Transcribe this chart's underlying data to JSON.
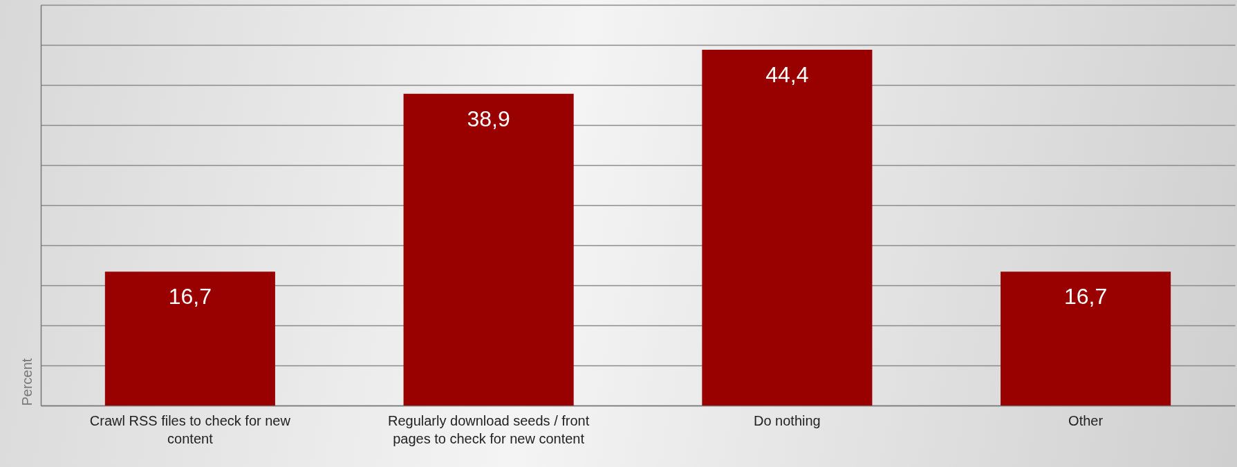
{
  "chart_data": {
    "type": "bar",
    "ylabel": "Percent",
    "categories": [
      "Crawl RSS files to check for new content",
      "Regularly download seeds / front pages to check for new content",
      "Do nothing",
      "Other"
    ],
    "values": [
      16.7,
      38.9,
      44.4,
      16.7
    ],
    "value_labels": [
      "16,7",
      "38,9",
      "44,4",
      "16,7"
    ],
    "color": "#990000",
    "ylim": [
      0,
      50
    ],
    "yticks": [
      {
        "value": 0,
        "label": null
      },
      {
        "value": 5,
        "label": null
      },
      {
        "value": 10,
        "label": null
      },
      {
        "value": 15,
        "label": null
      },
      {
        "value": 20,
        "label": null
      },
      {
        "value": 25,
        "label": null
      },
      {
        "value": 30,
        "label": null
      },
      {
        "value": 35,
        "label": null
      },
      {
        "value": 40,
        "label": null
      },
      {
        "value": 45,
        "label": null
      },
      {
        "value": 50,
        "label": null
      }
    ],
    "grid": "y",
    "tick_labels": "x"
  }
}
